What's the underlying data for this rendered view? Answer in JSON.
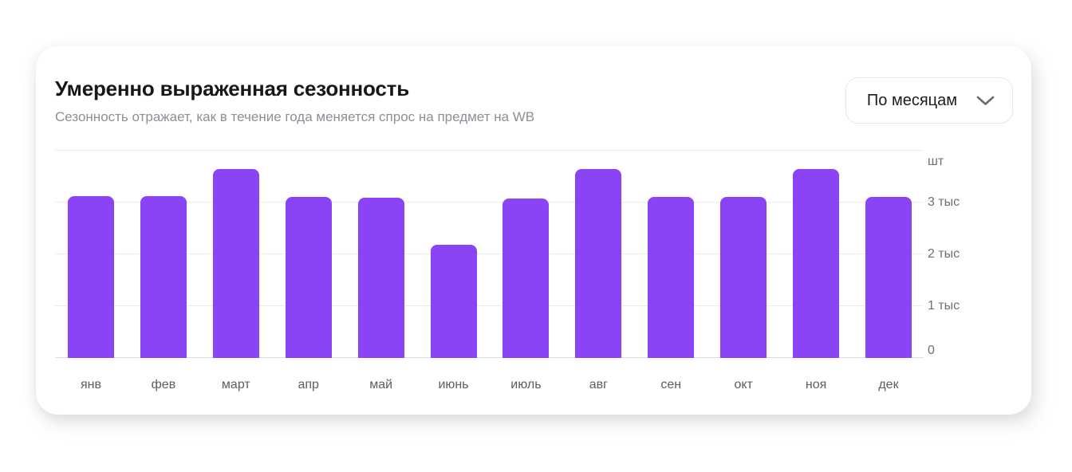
{
  "header": {
    "title": "Умеренно выраженная сезонность",
    "subtitle": "Сезонность отражает, как в течение года меняется спрос на предмет на WB",
    "period_dropdown": {
      "value": "По месяцам",
      "icon": "chevron-down"
    }
  },
  "chart_data": {
    "type": "bar",
    "title": "Умеренно выраженная сезонность",
    "unit_label": "шт",
    "categories": [
      "янв",
      "фев",
      "март",
      "апр",
      "май",
      "июнь",
      "июль",
      "авг",
      "сен",
      "окт",
      "ноя",
      "дек"
    ],
    "values": [
      3120,
      3120,
      3650,
      3110,
      3095,
      2180,
      3080,
      3650,
      3110,
      3110,
      3650,
      3115
    ],
    "y_ticks": [
      {
        "value": 0,
        "label": "0"
      },
      {
        "value": 1000,
        "label": "1 тыс"
      },
      {
        "value": 2000,
        "label": "2 тыс"
      },
      {
        "value": 3000,
        "label": "3 тыс"
      }
    ],
    "ylim": [
      0,
      4000
    ],
    "grid": true,
    "legend": false,
    "bar_color": "#8B44F5"
  },
  "colors": {
    "bar": "#8B44F5",
    "grid_line": "#ececf1",
    "axis_line": "#dcdce3",
    "x_label": "#5c5c66",
    "y_label": "#6e6e78",
    "title": "#17171c",
    "subtitle": "#8e8e99"
  }
}
